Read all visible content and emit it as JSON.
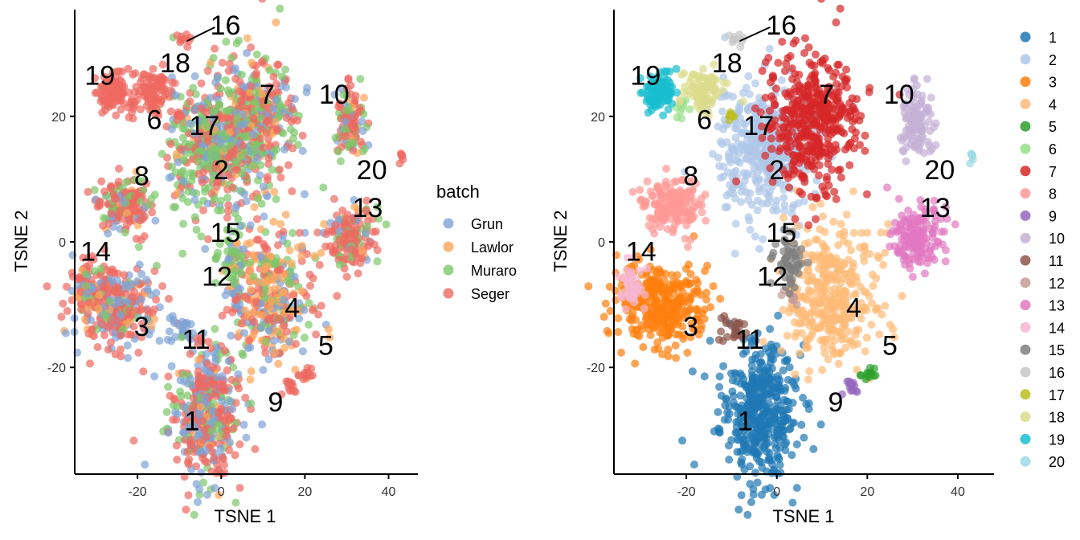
{
  "chart_data": [
    {
      "type": "scatter",
      "xlabel": "TSNE 1",
      "ylabel": "TSNE 2",
      "xticks": [
        -20,
        0,
        20,
        40
      ],
      "yticks": [
        -20,
        0,
        20
      ],
      "xlim": [
        -35,
        47
      ],
      "ylim": [
        -37,
        37
      ],
      "legend": {
        "title": "batch",
        "placement": "right",
        "items": [
          {
            "label": "Grun",
            "color": "#7FA3D6"
          },
          {
            "label": "Lawlor",
            "color": "#FDA55A"
          },
          {
            "label": "Muraro",
            "color": "#7CC86A"
          },
          {
            "label": "Seger",
            "color": "#EE6A61"
          }
        ]
      }
    },
    {
      "type": "scatter",
      "xlabel": "TSNE 1",
      "ylabel": "TSNE 2",
      "xticks": [
        -20,
        0,
        20,
        40
      ],
      "yticks": [
        -20,
        0,
        20
      ],
      "xlim": [
        -36,
        48
      ],
      "ylim": [
        -37,
        37
      ],
      "legend": {
        "title": "",
        "placement": "right",
        "items": [
          {
            "label": "1",
            "color": "#1F77B4"
          },
          {
            "label": "2",
            "color": "#AEC7E8"
          },
          {
            "label": "3",
            "color": "#FF7F0E"
          },
          {
            "label": "4",
            "color": "#FFBB78"
          },
          {
            "label": "5",
            "color": "#2CA02C"
          },
          {
            "label": "6",
            "color": "#98DF8A"
          },
          {
            "label": "7",
            "color": "#D62728"
          },
          {
            "label": "8",
            "color": "#FF9896"
          },
          {
            "label": "9",
            "color": "#9467BD"
          },
          {
            "label": "10",
            "color": "#C5B0D5"
          },
          {
            "label": "11",
            "color": "#8C564B"
          },
          {
            "label": "12",
            "color": "#C49C94"
          },
          {
            "label": "13",
            "color": "#E377C2"
          },
          {
            "label": "14",
            "color": "#F7B6D2"
          },
          {
            "label": "15",
            "color": "#7F7F7F"
          },
          {
            "label": "16",
            "color": "#C7C7C7"
          },
          {
            "label": "17",
            "color": "#BCBD22"
          },
          {
            "label": "18",
            "color": "#DBDB8D"
          },
          {
            "label": "19",
            "color": "#17BECF"
          },
          {
            "label": "20",
            "color": "#9EDAE5"
          }
        ]
      }
    }
  ],
  "clusters": [
    {
      "id": "1",
      "cx": -4,
      "cy": -27,
      "sx": 4.2,
      "sy": 5.5,
      "n": 420,
      "batch_mix": [
        0.3,
        0.05,
        0.15,
        0.5
      ]
    },
    {
      "id": "2",
      "cx": -3,
      "cy": 15,
      "sx": 5.5,
      "sy": 5.0,
      "n": 420,
      "batch_mix": [
        0.2,
        0.05,
        0.45,
        0.3
      ]
    },
    {
      "id": "3",
      "cx": -25,
      "cy": -10,
      "sx": 5.0,
      "sy": 3.2,
      "n": 320,
      "batch_mix": [
        0.25,
        0.1,
        0.1,
        0.55
      ]
    },
    {
      "id": "4",
      "cx": 12,
      "cy": -9,
      "sx": 5.0,
      "sy": 6.0,
      "n": 380,
      "batch_mix": [
        0.2,
        0.35,
        0.15,
        0.3
      ]
    },
    {
      "id": "5",
      "cx": 20,
      "cy": -21,
      "sx": 1.0,
      "sy": 0.6,
      "n": 14,
      "batch_mix": [
        0,
        0,
        0,
        1
      ]
    },
    {
      "id": "6",
      "cx": -21,
      "cy": 21.5,
      "sx": 0.7,
      "sy": 0.7,
      "n": 10,
      "batch_mix": [
        0,
        0,
        0,
        1
      ]
    },
    {
      "id": "7",
      "cx": 8,
      "cy": 19,
      "sx": 5.0,
      "sy": 5.5,
      "n": 420,
      "batch_mix": [
        0.2,
        0.1,
        0.3,
        0.4
      ]
    },
    {
      "id": "8",
      "cx": -23,
      "cy": 6,
      "sx": 3.0,
      "sy": 2.2,
      "n": 170,
      "batch_mix": [
        0.15,
        0.05,
        0.2,
        0.6
      ]
    },
    {
      "id": "9",
      "cx": 16,
      "cy": -23,
      "sx": 0.9,
      "sy": 0.7,
      "n": 14,
      "batch_mix": [
        0,
        0,
        0,
        1
      ]
    },
    {
      "id": "10",
      "cx": 31,
      "cy": 19,
      "sx": 1.8,
      "sy": 2.6,
      "n": 110,
      "batch_mix": [
        0.1,
        0.05,
        0.35,
        0.5
      ]
    },
    {
      "id": "11",
      "cx": -10,
      "cy": -14,
      "sx": 2.0,
      "sy": 1.2,
      "n": 28,
      "batch_mix": [
        0.8,
        0,
        0.1,
        0.1
      ]
    },
    {
      "id": "12",
      "cx": 3,
      "cy": -9,
      "sx": 1.0,
      "sy": 0.8,
      "n": 10,
      "batch_mix": [
        0.7,
        0,
        0,
        0.3
      ]
    },
    {
      "id": "13",
      "cx": 31,
      "cy": 1,
      "sx": 2.8,
      "sy": 2.4,
      "n": 150,
      "batch_mix": [
        0.1,
        0.1,
        0.2,
        0.6
      ]
    },
    {
      "id": "14",
      "cx": -32,
      "cy": -7,
      "sx": 1.4,
      "sy": 2.0,
      "n": 45,
      "batch_mix": [
        0.2,
        0.2,
        0.1,
        0.5
      ]
    },
    {
      "id": "15",
      "cx": 3,
      "cy": -3,
      "sx": 1.8,
      "sy": 1.8,
      "n": 55,
      "batch_mix": [
        0.3,
        0.1,
        0.5,
        0.1
      ]
    },
    {
      "id": "16",
      "cx": -9,
      "cy": 32,
      "sx": 0.8,
      "sy": 0.6,
      "n": 10,
      "batch_mix": [
        0,
        0,
        0,
        1
      ]
    },
    {
      "id": "17",
      "cx": -10,
      "cy": 20,
      "sx": 0.6,
      "sy": 0.5,
      "n": 8,
      "batch_mix": [
        0,
        0,
        0,
        1
      ]
    },
    {
      "id": "18",
      "cx": -16,
      "cy": 24,
      "sx": 2.0,
      "sy": 1.8,
      "n": 90,
      "batch_mix": [
        0,
        0,
        0,
        1
      ]
    },
    {
      "id": "19",
      "cx": -26,
      "cy": 24,
      "sx": 2.0,
      "sy": 1.6,
      "n": 90,
      "batch_mix": [
        0,
        0,
        0,
        1
      ]
    },
    {
      "id": "20",
      "cx": 43,
      "cy": 13.5,
      "sx": 0.6,
      "sy": 0.6,
      "n": 6,
      "batch_mix": [
        0,
        0,
        0,
        1
      ]
    }
  ],
  "cluster_labels": [
    {
      "text": "1",
      "x": -7,
      "y": -30
    },
    {
      "text": "2",
      "x": 0,
      "y": 10
    },
    {
      "text": "3",
      "x": -19,
      "y": -15
    },
    {
      "text": "4",
      "x": 17,
      "y": -12
    },
    {
      "text": "5",
      "x": 25,
      "y": -18
    },
    {
      "text": "6",
      "x": -16,
      "y": 18
    },
    {
      "text": "7",
      "x": 11,
      "y": 22
    },
    {
      "text": "8",
      "x": -19,
      "y": 9
    },
    {
      "text": "9",
      "x": 13,
      "y": -27
    },
    {
      "text": "10",
      "x": 27,
      "y": 22
    },
    {
      "text": "11",
      "x": -6,
      "y": -17
    },
    {
      "text": "12",
      "x": -1,
      "y": -7
    },
    {
      "text": "13",
      "x": 35,
      "y": 4
    },
    {
      "text": "14",
      "x": -30,
      "y": -3
    },
    {
      "text": "15",
      "x": 1,
      "y": 0
    },
    {
      "text": "16",
      "x": 1,
      "y": 33
    },
    {
      "text": "17",
      "x": -4,
      "y": 17
    },
    {
      "text": "18",
      "x": -11,
      "y": 27
    },
    {
      "text": "19",
      "x": -29,
      "y": 25
    },
    {
      "text": "20",
      "x": 36,
      "y": 10
    }
  ]
}
